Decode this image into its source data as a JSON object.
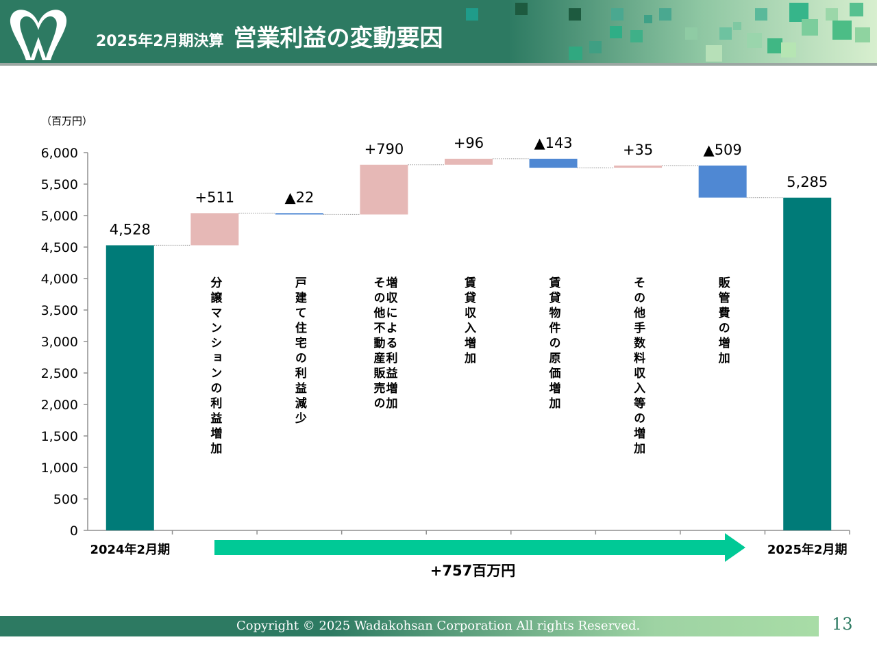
{
  "header": {
    "title_main": "2025年2月期決算",
    "title_sub": "営業利益の変動要因"
  },
  "chart_data": {
    "type": "waterfall",
    "unit_label": "（百万円）",
    "ylim": [
      0,
      6000
    ],
    "yticks": [
      0,
      500,
      1000,
      1500,
      2000,
      2500,
      3000,
      3500,
      4000,
      4500,
      5000,
      5500,
      6000
    ],
    "ytick_labels": [
      "0",
      "500",
      "1,000",
      "1,500",
      "2,000",
      "2,500",
      "3,000",
      "3,500",
      "4,000",
      "4,500",
      "5,000",
      "5,500",
      "6,000"
    ],
    "bars": [
      {
        "category": "2024年2月期",
        "kind": "total",
        "value": 4528,
        "label": "4,528"
      },
      {
        "category": "分譲マンションの利益増加",
        "kind": "increase",
        "value": 511,
        "label": "+511"
      },
      {
        "category": "戸建て住宅の利益減少",
        "kind": "decrease",
        "value": -22,
        "label": "▲22"
      },
      {
        "category": "増収による利益増加 その他不動産販売の",
        "kind": "increase",
        "value": 790,
        "label": "+790"
      },
      {
        "category": "賃貸収入増加",
        "kind": "increase",
        "value": 96,
        "label": "+96"
      },
      {
        "category": "賃貸物件の原価増加",
        "kind": "decrease",
        "value": -143,
        "label": "▲143"
      },
      {
        "category": "その他手数料収入等の増加",
        "kind": "increase",
        "value": 35,
        "label": "+35"
      },
      {
        "category": "販管費の増加",
        "kind": "decrease",
        "value": -509,
        "label": "▲509"
      },
      {
        "category": "2025年2月期",
        "kind": "total",
        "value": 5285,
        "label": "5,285"
      }
    ],
    "vertical_labels": [
      [],
      [
        "分譲マンションの利益増加"
      ],
      [
        "戸建て住宅の利益減少"
      ],
      [
        "増収による利益増加",
        "その他不動産販売の"
      ],
      [
        "賃貸収入増加"
      ],
      [
        "賃貸物件の原価増加"
      ],
      [
        "その他手数料収入等の増加"
      ],
      [
        "販管費の増加"
      ],
      []
    ],
    "x_labels_bottom": [
      "2024年2月期",
      "",
      "",
      "",
      "",
      "",
      "",
      "",
      "2025年2月期"
    ],
    "summary_arrow_label": "+757百万円",
    "colors": {
      "total": "#007b78",
      "increase": "#e6b8b6",
      "decrease": "#4f88d3",
      "arrow": "#00c996",
      "axis": "#8f8f8f",
      "connector": "#999999"
    },
    "grid": false,
    "legend": "none"
  },
  "footer": {
    "copyright": "Copyright © 2025 Wadakohsan Corporation All rights Reserved.",
    "page_number": "13"
  }
}
